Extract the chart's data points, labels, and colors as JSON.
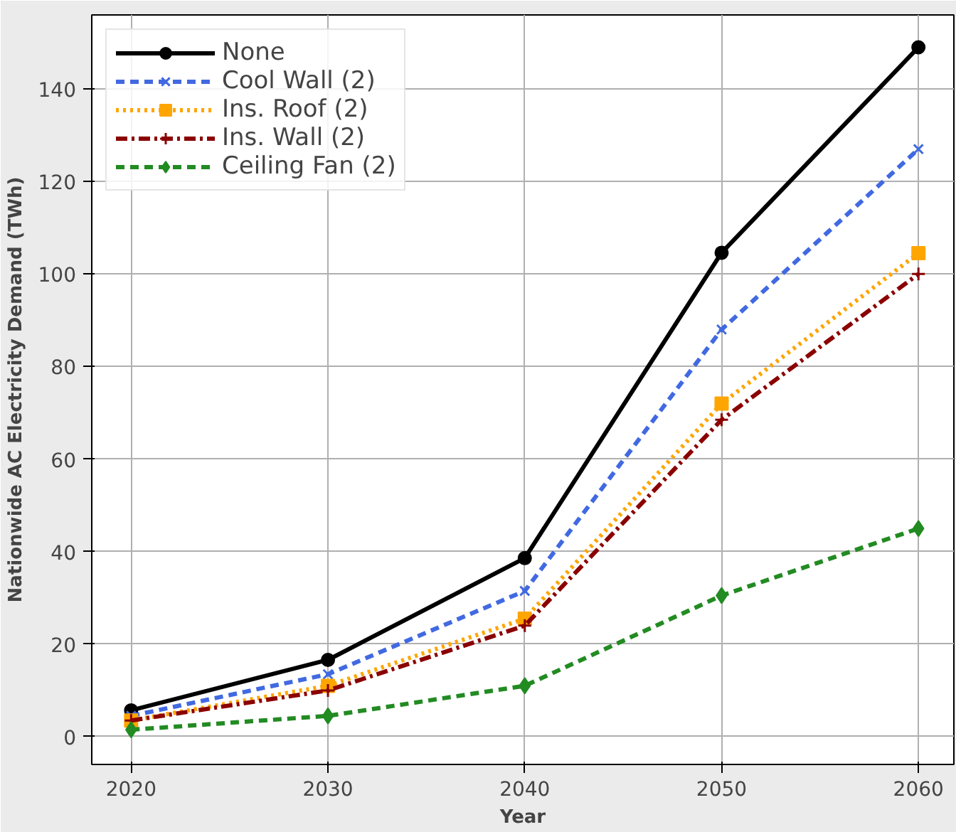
{
  "chart_data": {
    "type": "line",
    "xlabel": "Year",
    "ylabel": "Nationwide AC Electricity Demand (TWh)",
    "x": [
      2020,
      2030,
      2040,
      2050,
      2060
    ],
    "xlim": [
      2018,
      2061.8
    ],
    "ylim": [
      -6,
      156
    ],
    "xticks": [
      2020,
      2030,
      2040,
      2050,
      2060
    ],
    "yticks": [
      0,
      20,
      40,
      60,
      80,
      100,
      120,
      140
    ],
    "grid": true,
    "legend": "top left",
    "series": [
      {
        "name": "None",
        "color": "#000000",
        "marker": "circle",
        "line_style": "solid",
        "values": [
          5.7,
          16.6,
          38.6,
          104.6,
          149
        ]
      },
      {
        "name": "Cool Wall (2)",
        "color": "#4169e1",
        "marker": "x",
        "line_style": "dashed",
        "values": [
          4.5,
          13.5,
          31.5,
          88,
          127
        ]
      },
      {
        "name": "Ins. Roof (2)",
        "color": "#ffa500",
        "marker": "square",
        "line_style": "dotted",
        "values": [
          3.5,
          11,
          25.5,
          72,
          104.5
        ]
      },
      {
        "name": "Ins. Wall (2)",
        "color": "#8b0000",
        "marker": "cross",
        "line_style": "dashdot",
        "values": [
          3.5,
          10,
          24,
          68.5,
          100
        ]
      },
      {
        "name": "Ceiling Fan (2)",
        "color": "#228b22",
        "marker": "diamond",
        "line_style": "dashed",
        "values": [
          1.5,
          4.5,
          11,
          30.5,
          45
        ]
      }
    ]
  }
}
